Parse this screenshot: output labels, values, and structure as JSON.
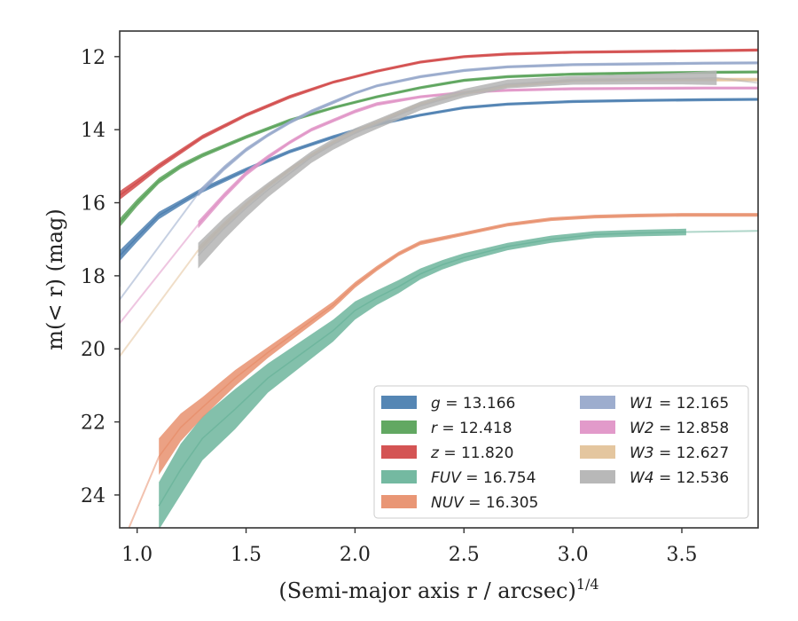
{
  "chart_data": {
    "type": "line",
    "xlabel": "(Semi-major axis r / arcsec)",
    "xlabel_exponent": "1/4",
    "ylabel": "m(< r) (mag)",
    "xlim": [
      0.92,
      3.85
    ],
    "ylim": [
      24.9,
      11.3
    ],
    "y_inverted": true,
    "grid": false,
    "legend_placement": "lower-right",
    "xticks": [
      1.0,
      1.5,
      2.0,
      2.5,
      3.0,
      3.5
    ],
    "xtick_labels": [
      "1.0",
      "1.5",
      "2.0",
      "2.5",
      "3.0",
      "3.5"
    ],
    "yticks": [
      12,
      14,
      16,
      18,
      20,
      22,
      24
    ],
    "ytick_labels": [
      "12",
      "14",
      "16",
      "18",
      "20",
      "22",
      "24"
    ],
    "series": [
      {
        "name": "g = 13.166",
        "label_var": "g",
        "label_val": "13.166",
        "color": "#4c7fb0",
        "x": [
          0.92,
          1.0,
          1.1,
          1.2,
          1.3,
          1.5,
          1.7,
          1.9,
          2.1,
          2.3,
          2.5,
          2.7,
          3.0,
          3.3,
          3.6,
          3.85
        ],
        "y": [
          17.45,
          16.95,
          16.35,
          16.0,
          15.65,
          15.1,
          14.6,
          14.2,
          13.85,
          13.6,
          13.4,
          13.3,
          13.23,
          13.2,
          13.18,
          13.17
        ],
        "err": [
          0.15,
          0.12,
          0.1,
          0.08,
          0.07,
          0.06,
          0.05,
          0.05,
          0.05,
          0.04,
          0.04,
          0.04,
          0.04,
          0.04,
          0.04,
          0.04
        ],
        "extrap_start": [
          0.92,
          18.3
        ]
      },
      {
        "name": "r = 12.418",
        "label_var": "r",
        "label_val": "12.418",
        "color": "#5aa35a",
        "x": [
          0.92,
          1.0,
          1.1,
          1.2,
          1.3,
          1.5,
          1.7,
          1.9,
          2.1,
          2.3,
          2.5,
          2.7,
          3.0,
          3.3,
          3.6,
          3.85
        ],
        "y": [
          16.55,
          16.0,
          15.4,
          15.0,
          14.7,
          14.2,
          13.75,
          13.4,
          13.1,
          12.85,
          12.65,
          12.55,
          12.48,
          12.45,
          12.43,
          12.42
        ],
        "err": [
          0.12,
          0.1,
          0.08,
          0.07,
          0.06,
          0.05,
          0.05,
          0.04,
          0.04,
          0.04,
          0.04,
          0.04,
          0.04,
          0.04,
          0.04,
          0.04
        ],
        "extrap_start": [
          0.92,
          17.4
        ]
      },
      {
        "name": "z = 11.820",
        "label_var": "z",
        "label_val": "11.820",
        "color": "#d24b4b",
        "x": [
          0.92,
          1.0,
          1.1,
          1.2,
          1.3,
          1.5,
          1.7,
          1.9,
          2.1,
          2.3,
          2.5,
          2.7,
          3.0,
          3.3,
          3.6,
          3.85
        ],
        "y": [
          15.8,
          15.45,
          15.0,
          14.6,
          14.2,
          13.6,
          13.1,
          12.7,
          12.4,
          12.15,
          12.0,
          11.93,
          11.88,
          11.86,
          11.84,
          11.82
        ],
        "err": [
          0.12,
          0.1,
          0.08,
          0.07,
          0.06,
          0.05,
          0.05,
          0.04,
          0.04,
          0.04,
          0.04,
          0.04,
          0.04,
          0.04,
          0.04,
          0.04
        ],
        "extrap_start": [
          0.92,
          16.7
        ]
      },
      {
        "name": "FUV = 16.754",
        "label_var": "FUV",
        "label_val": "16.754",
        "color": "#6db59c",
        "x": [
          1.1,
          1.2,
          1.3,
          1.45,
          1.6,
          1.75,
          1.9,
          2.0,
          2.1,
          2.2,
          2.3,
          2.4,
          2.5,
          2.7,
          2.9,
          3.1,
          3.3,
          3.52
        ],
        "y": [
          24.3,
          23.3,
          22.45,
          21.65,
          20.8,
          20.15,
          19.5,
          18.95,
          18.6,
          18.3,
          17.95,
          17.7,
          17.5,
          17.2,
          17.0,
          16.87,
          16.83,
          16.8
        ],
        "err": [
          0.65,
          0.7,
          0.6,
          0.55,
          0.4,
          0.35,
          0.3,
          0.25,
          0.2,
          0.18,
          0.15,
          0.13,
          0.12,
          0.1,
          0.1,
          0.09,
          0.09,
          0.09
        ],
        "extrap_end": [
          3.85,
          16.77
        ]
      },
      {
        "name": "NUV = 16.305",
        "label_var": "NUV",
        "label_val": "16.305",
        "color": "#e8906e",
        "x": [
          1.1,
          1.2,
          1.3,
          1.45,
          1.6,
          1.75,
          1.9,
          2.0,
          2.1,
          2.2,
          2.3,
          2.5,
          2.7,
          2.9,
          3.1,
          3.3,
          3.5,
          3.85
        ],
        "y": [
          22.95,
          22.15,
          21.6,
          20.8,
          20.1,
          19.45,
          18.8,
          18.25,
          17.8,
          17.4,
          17.1,
          16.85,
          16.6,
          16.45,
          16.38,
          16.35,
          16.33,
          16.33
        ],
        "err": [
          0.5,
          0.38,
          0.28,
          0.22,
          0.15,
          0.12,
          0.1,
          0.08,
          0.07,
          0.06,
          0.06,
          0.05,
          0.05,
          0.05,
          0.05,
          0.05,
          0.05,
          0.05
        ],
        "extrap_start": [
          0.92,
          25.5
        ]
      },
      {
        "name": "W1 = 12.165",
        "label_var": "W1",
        "label_val": "12.165",
        "color": "#98a9cb",
        "x": [
          1.28,
          1.4,
          1.5,
          1.6,
          1.7,
          1.8,
          1.9,
          2.0,
          2.1,
          2.3,
          2.5,
          2.7,
          3.0,
          3.3,
          3.6,
          3.85
        ],
        "y": [
          15.75,
          15.05,
          14.55,
          14.15,
          13.8,
          13.5,
          13.25,
          13.0,
          12.8,
          12.55,
          12.38,
          12.28,
          12.22,
          12.2,
          12.18,
          12.17
        ],
        "err": [
          0.08,
          0.07,
          0.06,
          0.05,
          0.05,
          0.05,
          0.05,
          0.04,
          0.04,
          0.04,
          0.04,
          0.04,
          0.04,
          0.04,
          0.04,
          0.04
        ],
        "extrap_start": [
          0.92,
          18.65
        ]
      },
      {
        "name": "W2 = 12.858",
        "label_var": "W2",
        "label_val": "12.858",
        "color": "#e095c7",
        "x": [
          1.28,
          1.4,
          1.5,
          1.6,
          1.7,
          1.8,
          1.9,
          2.0,
          2.1,
          2.3,
          2.5,
          2.7,
          3.0,
          3.3,
          3.6,
          3.85
        ],
        "y": [
          16.6,
          15.8,
          15.2,
          14.75,
          14.35,
          14.0,
          13.75,
          13.5,
          13.3,
          13.1,
          12.98,
          12.92,
          12.88,
          12.87,
          12.86,
          12.86
        ],
        "err": [
          0.1,
          0.08,
          0.07,
          0.06,
          0.05,
          0.05,
          0.05,
          0.05,
          0.05,
          0.04,
          0.04,
          0.04,
          0.04,
          0.04,
          0.04,
          0.04
        ],
        "extrap_start": [
          0.92,
          19.3
        ]
      },
      {
        "name": "W3 = 12.627",
        "label_var": "W3",
        "label_val": "12.627",
        "color": "#e3c39a",
        "x": [
          1.28,
          1.4,
          1.5,
          1.6,
          1.7,
          1.8,
          1.9,
          2.0,
          2.1,
          2.3,
          2.5,
          2.7,
          3.0,
          3.3,
          3.6,
          3.85
        ],
        "y": [
          17.3,
          16.6,
          16.05,
          15.55,
          15.1,
          14.7,
          14.35,
          14.05,
          13.8,
          13.3,
          13.0,
          12.8,
          12.65,
          12.63,
          12.63,
          12.63
        ],
        "err": [
          0.1,
          0.08,
          0.07,
          0.06,
          0.06,
          0.05,
          0.05,
          0.05,
          0.05,
          0.05,
          0.05,
          0.05,
          0.05,
          0.05,
          0.05,
          0.05
        ],
        "extrap_start": [
          0.92,
          20.2
        ]
      },
      {
        "name": "W4 = 12.536",
        "label_var": "W4",
        "label_val": "12.536",
        "color": "#b4b4b4",
        "x": [
          1.28,
          1.4,
          1.5,
          1.6,
          1.7,
          1.8,
          1.9,
          2.0,
          2.1,
          2.3,
          2.5,
          2.7,
          3.0,
          3.3,
          3.5,
          3.66
        ],
        "y": [
          17.45,
          16.7,
          16.15,
          15.65,
          15.2,
          14.75,
          14.4,
          14.1,
          13.85,
          13.35,
          13.0,
          12.75,
          12.65,
          12.62,
          12.6,
          12.58
        ],
        "err": [
          0.35,
          0.3,
          0.25,
          0.2,
          0.18,
          0.16,
          0.15,
          0.14,
          0.13,
          0.12,
          0.12,
          0.12,
          0.12,
          0.14,
          0.16,
          0.2
        ],
        "extrap_end": [
          3.85,
          12.72
        ]
      }
    ]
  }
}
